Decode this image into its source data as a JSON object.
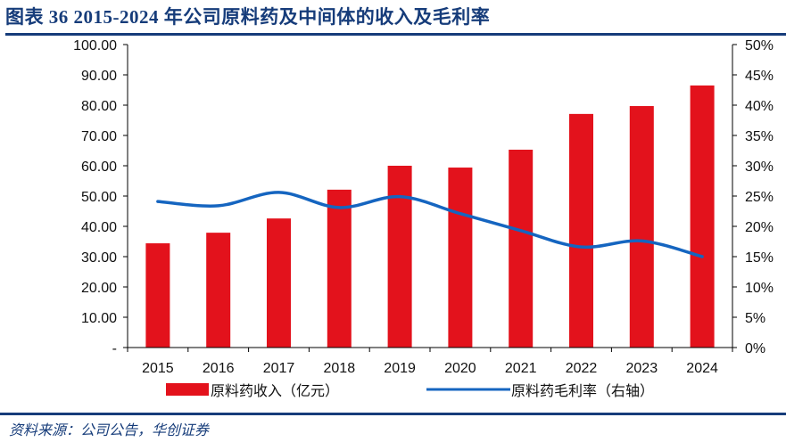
{
  "header": {
    "title": "图表 36   2015-2024 年公司原料药及中间体的收入及毛利率"
  },
  "footer": {
    "source": "资料来源：公司公告，华创证券"
  },
  "colors": {
    "bar": "#e3121c",
    "line": "#1565c0",
    "accent": "#163c7a"
  },
  "chart_data": {
    "type": "bar+line",
    "title": "2015-2024 年公司原料药及中间体的收入及毛利率",
    "categories": [
      "2015",
      "2016",
      "2017",
      "2018",
      "2019",
      "2020",
      "2021",
      "2022",
      "2023",
      "2024"
    ],
    "series": [
      {
        "name": "原料药收入（亿元）",
        "type": "bar",
        "axis": "left",
        "values": [
          34.4,
          37.9,
          42.6,
          52.1,
          60.0,
          59.4,
          65.3,
          77.1,
          79.7,
          86.5
        ]
      },
      {
        "name": "原料药毛利率（右轴）",
        "type": "line",
        "axis": "right",
        "smooth": true,
        "values": [
          24.1,
          23.4,
          25.6,
          23.1,
          24.9,
          22.1,
          19.3,
          16.6,
          17.6,
          15.0
        ]
      }
    ],
    "left_axis": {
      "ylim": [
        0,
        100
      ],
      "ticks": [
        0,
        10,
        20,
        30,
        40,
        50,
        60,
        70,
        80,
        90,
        100
      ],
      "tick_labels": [
        "-",
        "10.00",
        "20.00",
        "30.00",
        "40.00",
        "50.00",
        "60.00",
        "70.00",
        "80.00",
        "90.00",
        "100.00"
      ]
    },
    "right_axis": {
      "ylim": [
        0,
        50
      ],
      "ticks": [
        0,
        5,
        10,
        15,
        20,
        25,
        30,
        35,
        40,
        45,
        50
      ],
      "tick_labels": [
        "0%",
        "5%",
        "10%",
        "15%",
        "20%",
        "25%",
        "30%",
        "35%",
        "40%",
        "45%",
        "50%"
      ]
    },
    "xlabel": "",
    "ylabel": "",
    "grid": false,
    "legend": {
      "position": "bottom",
      "entries": [
        "原料药收入（亿元）",
        "原料药毛利率（右轴）"
      ]
    }
  }
}
